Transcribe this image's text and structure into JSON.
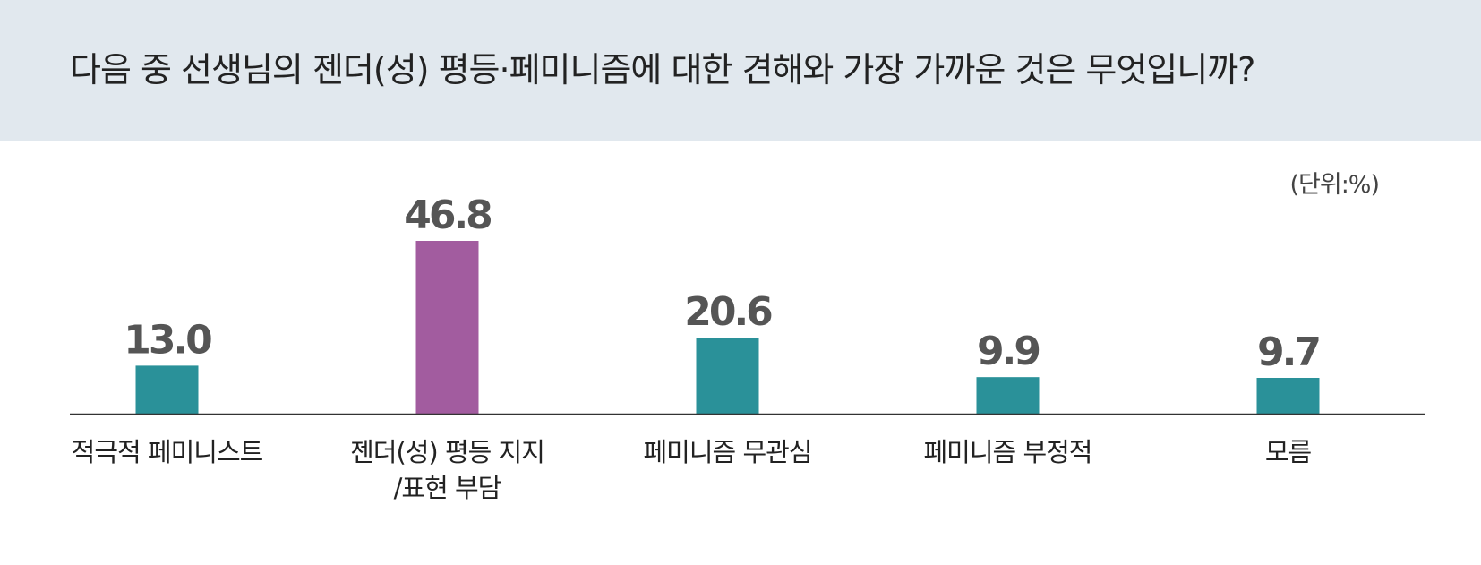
{
  "question": "다음 중 선생님의 젠더(성) 평등·페미니즘에 대한 견해와 가장 가까운 것은 무엇입니까?",
  "unit": "(단위:%)",
  "colors": {
    "banner": "#e1e8ee",
    "bar_default": "#2a9199",
    "bar_highlight": "#a25c9f",
    "value_text": "#555555",
    "category_text": "#222222",
    "axis": "#333333"
  },
  "chart_data": {
    "type": "bar",
    "title": "",
    "xlabel": "",
    "ylabel": "",
    "unit": "%",
    "ylim": [
      0,
      50
    ],
    "grid": false,
    "legend": "none",
    "highlight_index": 1,
    "categories": [
      [
        "적극적 페미니스트"
      ],
      [
        "젠더(성) 평등 지지",
        "/표현 부담"
      ],
      [
        "페미니즘 무관심"
      ],
      [
        "페미니즘 부정적"
      ],
      [
        "모름"
      ]
    ],
    "values": [
      13.0,
      46.8,
      20.6,
      9.9,
      9.7
    ],
    "value_labels": [
      "13.0",
      "46.8",
      "20.6",
      "9.9",
      "9.7"
    ]
  }
}
